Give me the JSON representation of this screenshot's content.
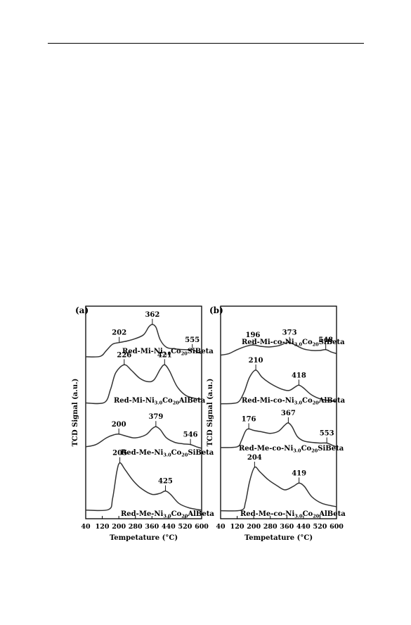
{
  "page": {
    "colors": {
      "ink": "#000000",
      "curve": "#333333",
      "paper": "#ffffff"
    }
  },
  "chart_data": [
    {
      "type": "line",
      "panel_label": "(a)",
      "xlabel": "Tempetature (°C)",
      "ylabel": "TCD Signal (a.u.)",
      "xlim": [
        40,
        600
      ],
      "xticks": [
        40,
        120,
        200,
        280,
        360,
        440,
        520,
        600
      ],
      "tick_labels": [
        "40",
        "120",
        "200",
        "280",
        "360",
        "440",
        "520",
        "600"
      ],
      "grid": false,
      "series": [
        {
          "label": {
            "pre": "Red-Mi-Ni",
            "sub1": "3.0",
            "mid": "Co",
            "sub2": "20",
            "post": "SiBeta"
          },
          "peaks": [
            {
              "x": 202,
              "label": "202"
            },
            {
              "x": 362,
              "label": "362"
            },
            {
              "x": 555,
              "label": "555"
            }
          ],
          "points": [
            [
              40,
              0.02
            ],
            [
              110,
              0.03
            ],
            [
              140,
              0.18
            ],
            [
              170,
              0.34
            ],
            [
              202,
              0.38
            ],
            [
              240,
              0.42
            ],
            [
              280,
              0.48
            ],
            [
              320,
              0.58
            ],
            [
              345,
              0.78
            ],
            [
              362,
              0.84
            ],
            [
              380,
              0.76
            ],
            [
              400,
              0.45
            ],
            [
              430,
              0.26
            ],
            [
              470,
              0.22
            ],
            [
              520,
              0.2
            ],
            [
              555,
              0.2
            ],
            [
              580,
              0.14
            ],
            [
              600,
              0.1
            ]
          ]
        },
        {
          "label": {
            "pre": "Red-Mi-Ni",
            "sub1": "3.0",
            "mid": "Co",
            "sub2": "20",
            "post": "AlBeta"
          },
          "peaks": [
            {
              "x": 226,
              "label": "226"
            },
            {
              "x": 421,
              "label": "421"
            }
          ],
          "points": [
            [
              40,
              0.04
            ],
            [
              130,
              0.05
            ],
            [
              160,
              0.35
            ],
            [
              185,
              0.72
            ],
            [
              226,
              0.9
            ],
            [
              260,
              0.78
            ],
            [
              300,
              0.6
            ],
            [
              340,
              0.52
            ],
            [
              370,
              0.56
            ],
            [
              400,
              0.8
            ],
            [
              421,
              0.9
            ],
            [
              445,
              0.76
            ],
            [
              480,
              0.42
            ],
            [
              520,
              0.22
            ],
            [
              560,
              0.15
            ],
            [
              600,
              0.12
            ]
          ]
        },
        {
          "label": {
            "pre": "Red-Me-Ni",
            "sub1": "3.0",
            "mid": "Co",
            "sub2": "20",
            "post": "SiBeta"
          },
          "peaks": [
            {
              "x": 200,
              "label": "200"
            },
            {
              "x": 379,
              "label": "379"
            },
            {
              "x": 546,
              "label": "546"
            }
          ],
          "points": [
            [
              40,
              0.06
            ],
            [
              90,
              0.12
            ],
            [
              140,
              0.3
            ],
            [
              175,
              0.38
            ],
            [
              200,
              0.4
            ],
            [
              240,
              0.34
            ],
            [
              280,
              0.3
            ],
            [
              330,
              0.38
            ],
            [
              360,
              0.54
            ],
            [
              379,
              0.6
            ],
            [
              400,
              0.52
            ],
            [
              430,
              0.3
            ],
            [
              470,
              0.18
            ],
            [
              510,
              0.14
            ],
            [
              546,
              0.12
            ],
            [
              575,
              0.06
            ],
            [
              600,
              0.02
            ]
          ]
        },
        {
          "label": {
            "pre": "Red-Me-Ni",
            "sub1": "3.0",
            "mid": "Co",
            "sub2": "20",
            "post": "AlBeta"
          },
          "peaks": [
            {
              "x": 205,
              "label": "205"
            },
            {
              "x": 425,
              "label": "425"
            }
          ],
          "points": [
            [
              40,
              0.04
            ],
            [
              150,
              0.05
            ],
            [
              170,
              0.25
            ],
            [
              190,
              0.72
            ],
            [
              205,
              0.88
            ],
            [
              230,
              0.76
            ],
            [
              270,
              0.56
            ],
            [
              310,
              0.42
            ],
            [
              360,
              0.32
            ],
            [
              400,
              0.34
            ],
            [
              425,
              0.38
            ],
            [
              450,
              0.32
            ],
            [
              490,
              0.16
            ],
            [
              540,
              0.08
            ],
            [
              600,
              0.04
            ]
          ]
        }
      ]
    },
    {
      "type": "line",
      "panel_label": "(b)",
      "xlabel": "Tempetature (°C)",
      "ylabel": "TCD Signal (a.u.)",
      "xlim": [
        40,
        600
      ],
      "xticks": [
        40,
        120,
        200,
        280,
        360,
        440,
        520,
        600
      ],
      "tick_labels": [
        "40",
        "120",
        "200",
        "280",
        "360",
        "440",
        "520",
        "600"
      ],
      "grid": false,
      "series": [
        {
          "label": {
            "pre": "Red-Mi-co-Ni",
            "sub1": "3.0",
            "mid": "Co",
            "sub2": "20",
            "post": "SiBeta"
          },
          "peaks": [
            {
              "x": 196,
              "label": "196"
            },
            {
              "x": 373,
              "label": "373"
            },
            {
              "x": 548,
              "label": "548"
            }
          ],
          "points": [
            [
              40,
              0.06
            ],
            [
              80,
              0.1
            ],
            [
              120,
              0.2
            ],
            [
              160,
              0.28
            ],
            [
              196,
              0.32
            ],
            [
              240,
              0.28
            ],
            [
              280,
              0.27
            ],
            [
              320,
              0.3
            ],
            [
              350,
              0.36
            ],
            [
              373,
              0.38
            ],
            [
              400,
              0.32
            ],
            [
              440,
              0.22
            ],
            [
              480,
              0.18
            ],
            [
              520,
              0.18
            ],
            [
              548,
              0.2
            ],
            [
              575,
              0.14
            ],
            [
              600,
              0.1
            ]
          ]
        },
        {
          "label": {
            "pre": "Red-Mi-co-Ni",
            "sub1": "3.0",
            "mid": "Co",
            "sub2": "20",
            "post": "AlBeta"
          },
          "peaks": [
            {
              "x": 210,
              "label": "210"
            },
            {
              "x": 418,
              "label": "418"
            }
          ],
          "points": [
            [
              40,
              0.02
            ],
            [
              100,
              0.03
            ],
            [
              130,
              0.08
            ],
            [
              155,
              0.3
            ],
            [
              180,
              0.62
            ],
            [
              210,
              0.78
            ],
            [
              240,
              0.62
            ],
            [
              280,
              0.48
            ],
            [
              330,
              0.36
            ],
            [
              370,
              0.32
            ],
            [
              400,
              0.4
            ],
            [
              418,
              0.44
            ],
            [
              440,
              0.38
            ],
            [
              480,
              0.22
            ],
            [
              530,
              0.12
            ],
            [
              600,
              0.07
            ]
          ]
        },
        {
          "label": {
            "pre": "Red-Me-co-Ni",
            "sub1": "3.0",
            "mid": "Co",
            "sub2": "20",
            "post": "SiBeta"
          },
          "peaks": [
            {
              "x": 176,
              "label": "176"
            },
            {
              "x": 367,
              "label": "367"
            },
            {
              "x": 553,
              "label": "553"
            }
          ],
          "points": [
            [
              40,
              0.04
            ],
            [
              120,
              0.06
            ],
            [
              140,
              0.22
            ],
            [
              160,
              0.48
            ],
            [
              176,
              0.54
            ],
            [
              200,
              0.5
            ],
            [
              240,
              0.46
            ],
            [
              280,
              0.42
            ],
            [
              320,
              0.48
            ],
            [
              350,
              0.64
            ],
            [
              367,
              0.7
            ],
            [
              385,
              0.6
            ],
            [
              410,
              0.34
            ],
            [
              440,
              0.22
            ],
            [
              480,
              0.18
            ],
            [
              520,
              0.16
            ],
            [
              553,
              0.16
            ],
            [
              580,
              0.1
            ],
            [
              600,
              0.06
            ]
          ]
        },
        {
          "label": {
            "pre": "Red-Me-co-Ni",
            "sub1": "3.0",
            "mid": "Co",
            "sub2": "20",
            "post": "AlBeta"
          },
          "peaks": [
            {
              "x": 204,
              "label": "204"
            },
            {
              "x": 419,
              "label": "419"
            }
          ],
          "points": [
            [
              40,
              0.03
            ],
            [
              140,
              0.04
            ],
            [
              160,
              0.18
            ],
            [
              180,
              0.55
            ],
            [
              204,
              0.8
            ],
            [
              230,
              0.72
            ],
            [
              270,
              0.58
            ],
            [
              310,
              0.48
            ],
            [
              350,
              0.4
            ],
            [
              390,
              0.46
            ],
            [
              419,
              0.52
            ],
            [
              445,
              0.46
            ],
            [
              480,
              0.28
            ],
            [
              530,
              0.16
            ],
            [
              600,
              0.1
            ]
          ]
        }
      ]
    }
  ]
}
